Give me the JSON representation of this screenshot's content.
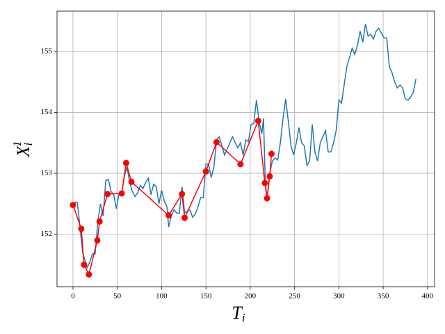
{
  "chart_data": {
    "type": "line",
    "xlabel": "T",
    "xlabel_subscript": "i",
    "ylabel": "X",
    "ylabel_subscript": "i",
    "ylabel_superscript": "1",
    "xlim": [
      -18,
      408
    ],
    "ylim": [
      151.14,
      155.66
    ],
    "xticks": [
      0,
      50,
      100,
      150,
      200,
      250,
      300,
      350,
      400
    ],
    "yticks": [
      152,
      153,
      154,
      155
    ],
    "grid": true,
    "series": [
      {
        "color": "#1f77b4",
        "markers": false,
        "x": [
          0,
          3,
          5,
          8,
          11,
          13,
          16,
          19,
          22,
          25,
          28,
          31,
          34,
          37,
          40,
          43,
          46,
          49,
          52,
          55,
          58,
          61,
          64,
          67,
          70,
          73,
          76,
          79,
          82,
          85,
          88,
          91,
          94,
          97,
          100,
          103,
          106,
          108,
          111,
          114,
          117,
          120,
          123,
          126,
          129,
          132,
          135,
          138,
          141,
          144,
          147,
          150,
          153,
          156,
          159,
          162,
          165,
          168,
          171,
          174,
          177,
          180,
          183,
          186,
          189,
          192,
          195,
          198,
          201,
          204,
          207,
          210,
          213,
          215,
          217,
          219,
          222,
          225,
          228,
          231,
          234,
          237,
          240,
          243,
          246,
          249,
          252,
          255,
          258,
          261,
          264,
          267,
          270,
          273,
          276,
          279,
          282,
          285,
          288,
          291,
          294,
          297,
          300,
          303,
          306,
          309,
          312,
          315,
          318,
          321,
          324,
          327,
          330,
          333,
          336,
          339,
          342,
          345,
          348,
          351,
          354,
          357,
          360,
          363,
          366,
          369,
          372,
          375,
          378,
          381,
          384,
          387
        ],
        "values": [
          152.48,
          152.53,
          152.52,
          152.1,
          151.7,
          151.6,
          151.45,
          151.55,
          151.68,
          151.68,
          152.2,
          152.5,
          152.3,
          152.88,
          152.9,
          152.7,
          152.65,
          152.42,
          152.67,
          152.68,
          152.95,
          153.1,
          152.85,
          152.7,
          152.62,
          152.68,
          152.8,
          152.75,
          152.85,
          152.92,
          152.65,
          152.82,
          152.78,
          152.5,
          152.72,
          152.55,
          152.45,
          152.12,
          152.3,
          152.4,
          152.35,
          152.34,
          152.78,
          152.35,
          152.38,
          152.4,
          152.28,
          152.33,
          152.45,
          152.6,
          152.6,
          153.15,
          153.15,
          152.93,
          153.1,
          153.55,
          153.6,
          153.45,
          153.3,
          153.4,
          153.5,
          153.6,
          153.5,
          153.42,
          153.5,
          153.3,
          153.55,
          153.52,
          153.8,
          153.82,
          154.2,
          153.85,
          153.65,
          153.9,
          152.85,
          152.6,
          153.0,
          153.2,
          153.25,
          153.22,
          153.5,
          153.9,
          154.22,
          153.85,
          153.45,
          153.3,
          153.5,
          153.75,
          153.5,
          153.45,
          153.13,
          153.2,
          153.8,
          153.35,
          153.2,
          153.5,
          153.6,
          153.7,
          153.35,
          153.35,
          153.5,
          153.7,
          154.2,
          154.15,
          154.45,
          154.75,
          154.9,
          155.05,
          154.95,
          155.1,
          155.33,
          155.15,
          155.45,
          155.25,
          155.28,
          155.2,
          155.33,
          155.38,
          155.3,
          155.22,
          155.22,
          154.75,
          154.65,
          154.5,
          154.4,
          154.45,
          154.4,
          154.22,
          154.2,
          154.25,
          154.33,
          154.55
        ]
      },
      {
        "color": "#ff0000",
        "markers": true,
        "x": [
          0,
          9.4,
          12.5,
          18,
          27.5,
          30,
          39,
          55,
          60,
          66,
          108,
          123,
          126,
          150,
          162,
          189,
          209,
          216.5,
          219,
          222,
          224
        ],
        "values": [
          152.48,
          152.09,
          151.5,
          151.34,
          151.9,
          152.21,
          152.66,
          152.67,
          153.17,
          152.86,
          152.31,
          152.66,
          152.27,
          153.03,
          153.51,
          153.15,
          153.86,
          152.84,
          152.59,
          152.95,
          153.32
        ]
      }
    ]
  }
}
